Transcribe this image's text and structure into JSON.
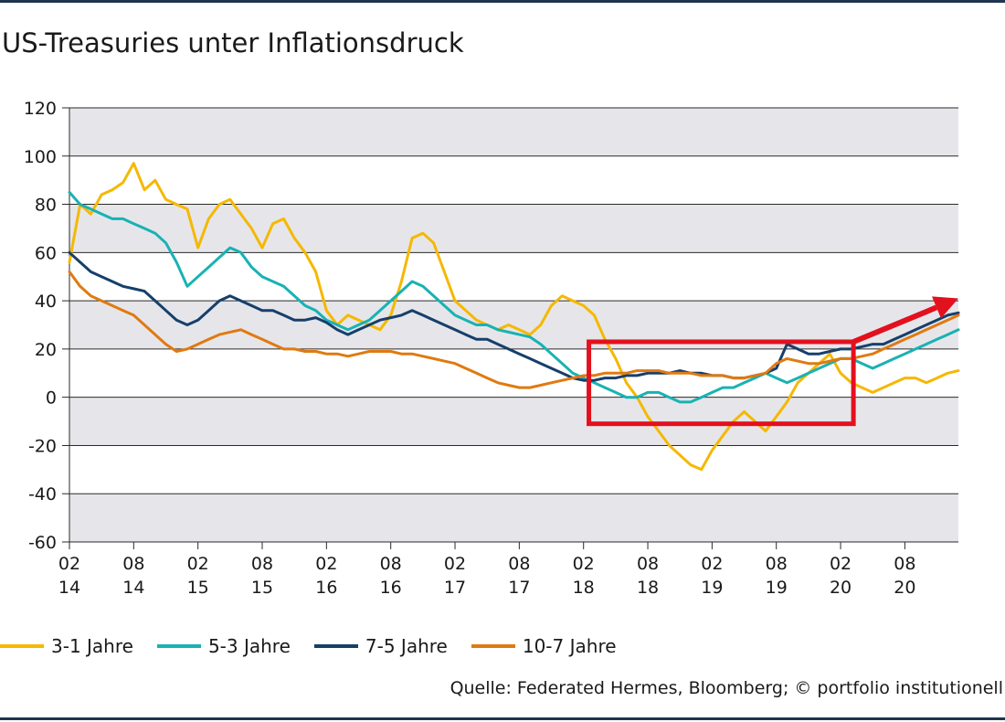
{
  "title": "US-Treasuries unter Inflationsdruck",
  "source": "Quelle: Federated Hermes, Bloomberg; © portfolio institutionell",
  "colors": {
    "background_band": "#e6e6ea",
    "gridline": "#2a2a2a",
    "highlight_box": "#e3101e",
    "arrow": "#e3101e"
  },
  "chart_data": {
    "type": "line",
    "ylim": [
      -60,
      120
    ],
    "yticks": [
      120,
      100,
      80,
      60,
      40,
      20,
      0,
      -20,
      -40,
      -60
    ],
    "xticks": [
      {
        "top": "02",
        "bottom": "14"
      },
      {
        "top": "08",
        "bottom": "14"
      },
      {
        "top": "02",
        "bottom": "15"
      },
      {
        "top": "08",
        "bottom": "15"
      },
      {
        "top": "02",
        "bottom": "16"
      },
      {
        "top": "08",
        "bottom": "16"
      },
      {
        "top": "02",
        "bottom": "17"
      },
      {
        "top": "08",
        "bottom": "17"
      },
      {
        "top": "02",
        "bottom": "18"
      },
      {
        "top": "08",
        "bottom": "18"
      },
      {
        "top": "02",
        "bottom": "19"
      },
      {
        "top": "08",
        "bottom": "19"
      },
      {
        "top": "02",
        "bottom": "20"
      },
      {
        "top": "08",
        "bottom": "20"
      }
    ],
    "x_index_range": [
      0,
      83
    ],
    "x_tick_indices": [
      0,
      6,
      12,
      18,
      24,
      30,
      36,
      42,
      48,
      54,
      60,
      66,
      72,
      78
    ],
    "grid": true,
    "legend_position": "bottom-left",
    "highlight_box": {
      "x_index": [
        48.5,
        73.2
      ],
      "y": [
        -11,
        23
      ]
    },
    "trend_arrow": {
      "from": {
        "x_index": 73.2,
        "y": 23
      },
      "to": {
        "x_index": 83,
        "y": 41
      }
    },
    "series": [
      {
        "name": "3-1 Jahre",
        "color": "#f5b800",
        "values": [
          56,
          80,
          76,
          84,
          86,
          89,
          97,
          86,
          90,
          82,
          80,
          78,
          62,
          74,
          80,
          82,
          76,
          70,
          62,
          72,
          74,
          66,
          60,
          52,
          36,
          30,
          34,
          32,
          30,
          28,
          34,
          48,
          66,
          68,
          64,
          52,
          40,
          36,
          32,
          30,
          28,
          30,
          28,
          26,
          30,
          38,
          42,
          40,
          38,
          34,
          24,
          16,
          6,
          0,
          -8,
          -14,
          -20,
          -24,
          -28,
          -30,
          -22,
          -16,
          -10,
          -6,
          -10,
          -14,
          -8,
          -2,
          6,
          10,
          14,
          18,
          10,
          6,
          4,
          2,
          4,
          6,
          8,
          8,
          6,
          8,
          10,
          11
        ]
      },
      {
        "name": "5-3 Jahre",
        "color": "#19b2b3",
        "values": [
          85,
          80,
          78,
          76,
          74,
          74,
          72,
          70,
          68,
          64,
          56,
          46,
          50,
          54,
          58,
          62,
          60,
          54,
          50,
          48,
          46,
          42,
          38,
          36,
          32,
          30,
          28,
          30,
          32,
          36,
          40,
          44,
          48,
          46,
          42,
          38,
          34,
          32,
          30,
          30,
          28,
          27,
          26,
          25,
          22,
          18,
          14,
          10,
          8,
          6,
          4,
          2,
          0,
          0,
          2,
          2,
          0,
          -2,
          -2,
          0,
          2,
          4,
          4,
          6,
          8,
          10,
          8,
          6,
          8,
          10,
          12,
          14,
          16,
          16,
          14,
          12,
          14,
          16,
          18,
          20,
          22,
          24,
          26,
          28
        ]
      },
      {
        "name": "7-5 Jahre",
        "color": "#163f6b",
        "values": [
          60,
          56,
          52,
          50,
          48,
          46,
          45,
          44,
          40,
          36,
          32,
          30,
          32,
          36,
          40,
          42,
          40,
          38,
          36,
          36,
          34,
          32,
          32,
          33,
          31,
          28,
          26,
          28,
          30,
          32,
          33,
          34,
          36,
          34,
          32,
          30,
          28,
          26,
          24,
          24,
          22,
          20,
          18,
          16,
          14,
          12,
          10,
          8,
          7,
          7,
          8,
          8,
          9,
          9,
          10,
          10,
          10,
          11,
          10,
          10,
          9,
          9,
          8,
          8,
          9,
          10,
          12,
          22,
          20,
          18,
          18,
          19,
          20,
          20,
          21,
          22,
          22,
          24,
          26,
          28,
          30,
          32,
          34,
          35
        ]
      },
      {
        "name": "10-7 Jahre",
        "color": "#e07a10",
        "values": [
          52,
          46,
          42,
          40,
          38,
          36,
          34,
          30,
          26,
          22,
          19,
          20,
          22,
          24,
          26,
          27,
          28,
          26,
          24,
          22,
          20,
          20,
          19,
          19,
          18,
          18,
          17,
          18,
          19,
          19,
          19,
          18,
          18,
          17,
          16,
          15,
          14,
          12,
          10,
          8,
          6,
          5,
          4,
          4,
          5,
          6,
          7,
          8,
          9,
          9,
          10,
          10,
          10,
          11,
          11,
          11,
          10,
          10,
          10,
          9,
          9,
          9,
          8,
          8,
          9,
          10,
          14,
          16,
          15,
          14,
          14,
          15,
          16,
          16,
          17,
          18,
          20,
          22,
          24,
          26,
          28,
          30,
          32,
          34
        ]
      }
    ]
  }
}
